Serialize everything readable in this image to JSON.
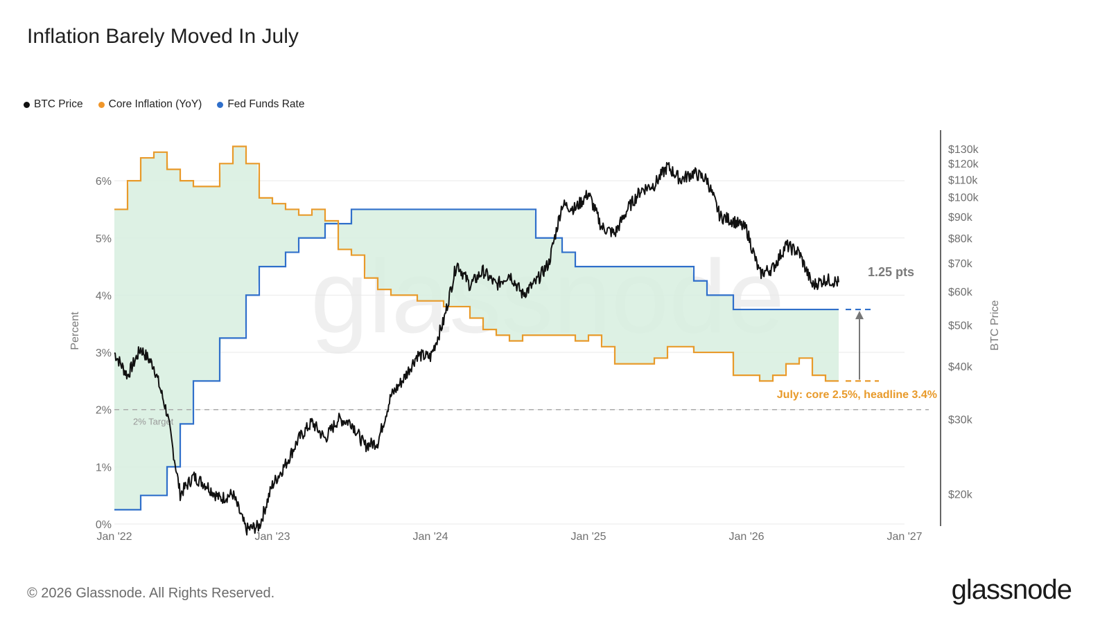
{
  "title": "Inflation Barely Moved In July",
  "footer": "© 2026 Glassnode. All Rights Reserved.",
  "logo_text": "glassnode",
  "watermark": "glassnode",
  "legend": [
    {
      "label": "BTC Price",
      "color": "#111111"
    },
    {
      "label": "Core Inflation (YoY)",
      "color": "#f0962a"
    },
    {
      "label": "Fed Funds Rate",
      "color": "#2f6fca"
    }
  ],
  "colors": {
    "btc": "#111111",
    "core": "#e89a2a",
    "fed": "#2f6fca",
    "gap_fill": "#d7efdf",
    "grid": "#e9e9e9",
    "target": "#aaaaaa",
    "annotation_orange": "#e89a2a",
    "annotation_gray": "#777777"
  },
  "chart_data": {
    "type": "line",
    "x_axis": {
      "ticks": [
        "Jan '22",
        "Jan '23",
        "Jan '24",
        "Jan '25",
        "Jan '26",
        "Jan '27"
      ],
      "range": [
        "2022-01",
        "2027-01"
      ]
    },
    "y_left": {
      "label": "Percent",
      "range": [
        0,
        6.8
      ],
      "ticks": [
        "0%",
        "1%",
        "2%",
        "3%",
        "4%",
        "5%",
        "6%"
      ]
    },
    "y_right": {
      "label": "BTC Price",
      "scale": "log",
      "ticks": [
        "$20k",
        "$30k",
        "$40k",
        "$50k",
        "$60k",
        "$70k",
        "$80k",
        "$90k",
        "$100k",
        "$110k",
        "$120k",
        "$130k"
      ]
    },
    "target_label": "2% Target",
    "target_value": 2,
    "series": [
      {
        "name": "Fed Funds Rate",
        "step": true,
        "points": [
          [
            "2022-01",
            0.25
          ],
          [
            "2022-03",
            0.5
          ],
          [
            "2022-05",
            1.0
          ],
          [
            "2022-06",
            1.75
          ],
          [
            "2022-07",
            2.5
          ],
          [
            "2022-09",
            3.25
          ],
          [
            "2022-11",
            4.0
          ],
          [
            "2022-12",
            4.5
          ],
          [
            "2023-02",
            4.75
          ],
          [
            "2023-03",
            5.0
          ],
          [
            "2023-05",
            5.25
          ],
          [
            "2023-07",
            5.5
          ],
          [
            "2024-09",
            5.0
          ],
          [
            "2024-11",
            4.75
          ],
          [
            "2024-12",
            4.5
          ],
          [
            "2025-09",
            4.25
          ],
          [
            "2025-10",
            4.0
          ],
          [
            "2025-12",
            3.75
          ],
          [
            "2026-08",
            3.75
          ]
        ]
      },
      {
        "name": "Core Inflation (YoY)",
        "step": true,
        "points": [
          [
            "2022-01",
            5.5
          ],
          [
            "2022-02",
            6.0
          ],
          [
            "2022-03",
            6.4
          ],
          [
            "2022-04",
            6.5
          ],
          [
            "2022-05",
            6.2
          ],
          [
            "2022-06",
            6.0
          ],
          [
            "2022-07",
            5.9
          ],
          [
            "2022-09",
            6.3
          ],
          [
            "2022-10",
            6.6
          ],
          [
            "2022-11",
            6.3
          ],
          [
            "2022-12",
            5.7
          ],
          [
            "2023-01",
            5.6
          ],
          [
            "2023-02",
            5.5
          ],
          [
            "2023-03",
            5.4
          ],
          [
            "2023-04",
            5.5
          ],
          [
            "2023-05",
            5.3
          ],
          [
            "2023-06",
            4.8
          ],
          [
            "2023-07",
            4.7
          ],
          [
            "2023-08",
            4.3
          ],
          [
            "2023-09",
            4.1
          ],
          [
            "2023-10",
            4.0
          ],
          [
            "2023-11",
            4.0
          ],
          [
            "2023-12",
            3.9
          ],
          [
            "2024-01",
            3.9
          ],
          [
            "2024-02",
            3.8
          ],
          [
            "2024-03",
            3.8
          ],
          [
            "2024-04",
            3.6
          ],
          [
            "2024-05",
            3.4
          ],
          [
            "2024-06",
            3.3
          ],
          [
            "2024-07",
            3.2
          ],
          [
            "2024-08",
            3.3
          ],
          [
            "2024-11",
            3.3
          ],
          [
            "2024-12",
            3.2
          ],
          [
            "2025-01",
            3.3
          ],
          [
            "2025-02",
            3.1
          ],
          [
            "2025-03",
            2.8
          ],
          [
            "2025-05",
            2.8
          ],
          [
            "2025-06",
            2.9
          ],
          [
            "2025-07",
            3.1
          ],
          [
            "2025-09",
            3.0
          ],
          [
            "2025-12",
            2.6
          ],
          [
            "2026-02",
            2.5
          ],
          [
            "2026-03",
            2.6
          ],
          [
            "2026-04",
            2.8
          ],
          [
            "2026-05",
            2.9
          ],
          [
            "2026-06",
            2.6
          ],
          [
            "2026-07",
            2.5
          ],
          [
            "2026-08",
            2.5
          ]
        ]
      },
      {
        "name": "BTC Price",
        "axis": "right",
        "points": [
          [
            "2022-01",
            43000
          ],
          [
            "2022-02",
            38000
          ],
          [
            "2022-03",
            44000
          ],
          [
            "2022-04",
            40000
          ],
          [
            "2022-05",
            31000
          ],
          [
            "2022-06",
            20000
          ],
          [
            "2022-07",
            22000
          ],
          [
            "2022-08",
            21000
          ],
          [
            "2022-09",
            19500
          ],
          [
            "2022-10",
            20000
          ],
          [
            "2022-11",
            16500
          ],
          [
            "2022-12",
            16800
          ],
          [
            "2023-01",
            21000
          ],
          [
            "2023-02",
            23500
          ],
          [
            "2023-03",
            27000
          ],
          [
            "2023-04",
            29500
          ],
          [
            "2023-05",
            27000
          ],
          [
            "2023-06",
            30000
          ],
          [
            "2023-07",
            29500
          ],
          [
            "2023-08",
            26000
          ],
          [
            "2023-09",
            26500
          ],
          [
            "2023-10",
            34000
          ],
          [
            "2023-11",
            37500
          ],
          [
            "2023-12",
            42500
          ],
          [
            "2024-01",
            42000
          ],
          [
            "2024-02",
            51000
          ],
          [
            "2024-03",
            70000
          ],
          [
            "2024-04",
            62000
          ],
          [
            "2024-05",
            67000
          ],
          [
            "2024-06",
            62000
          ],
          [
            "2024-07",
            66000
          ],
          [
            "2024-08",
            59000
          ],
          [
            "2024-09",
            63000
          ],
          [
            "2024-10",
            70000
          ],
          [
            "2024-11",
            96000
          ],
          [
            "2024-12",
            94000
          ],
          [
            "2025-01",
            102000
          ],
          [
            "2025-02",
            85000
          ],
          [
            "2025-03",
            82000
          ],
          [
            "2025-04",
            94000
          ],
          [
            "2025-05",
            104000
          ],
          [
            "2025-06",
            107000
          ],
          [
            "2025-07",
            118000
          ],
          [
            "2025-08",
            110000
          ],
          [
            "2025-09",
            114000
          ],
          [
            "2025-10",
            110000
          ],
          [
            "2025-11",
            90000
          ],
          [
            "2025-12",
            88000
          ],
          [
            "2026-01",
            84000
          ],
          [
            "2026-02",
            66000
          ],
          [
            "2026-03",
            68000
          ],
          [
            "2026-04",
            77000
          ],
          [
            "2026-05",
            74000
          ],
          [
            "2026-06",
            62000
          ],
          [
            "2026-07",
            64000
          ],
          [
            "2026-08",
            63000
          ]
        ]
      }
    ],
    "annotations": {
      "gap_label": "1.25 pts",
      "july_label": "July: core 2.5%, headline 3.4%"
    }
  }
}
